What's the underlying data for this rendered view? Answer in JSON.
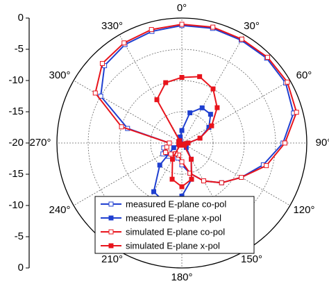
{
  "chart_data": {
    "type": "polar",
    "theta": [
      0,
      15,
      30,
      45,
      60,
      75,
      90,
      105,
      120,
      135,
      150,
      165,
      180,
      195,
      210,
      225,
      240,
      255,
      270,
      285,
      300,
      315,
      330,
      345
    ],
    "rlim": [
      -20,
      0
    ],
    "rticks": [
      -20,
      -15,
      -10,
      -5,
      0
    ],
    "thetaticks": [
      {
        "value": 0,
        "label": "0°"
      },
      {
        "value": 30,
        "label": "30°"
      },
      {
        "value": 60,
        "label": "60°"
      },
      {
        "value": 90,
        "label": "90°"
      },
      {
        "value": 120,
        "label": "120°"
      },
      {
        "value": 150,
        "label": "150°"
      },
      {
        "value": 180,
        "label": "180°"
      },
      {
        "value": 210,
        "label": "210°"
      },
      {
        "value": 240,
        "label": "240°"
      },
      {
        "value": 270,
        "label": "270°"
      },
      {
        "value": 300,
        "label": "300°"
      },
      {
        "value": 330,
        "label": "330°"
      }
    ],
    "grid": true,
    "legend": "bottom",
    "series": [
      {
        "name": "measured E-plane co-pol",
        "color": "#1f3fd0",
        "marker": "open-square",
        "values": [
          -1.2,
          -1,
          -1,
          -0.8,
          -0.8,
          -1.5,
          -3.8,
          -6.5,
          -9,
          -11,
          -13,
          -15,
          -16.5,
          -17.5,
          -18,
          -17,
          -16.5,
          -17,
          -18,
          -11,
          -5,
          -2.5,
          -1.8,
          -1.5
        ]
      },
      {
        "name": "measured E-plane x-pol",
        "color": "#1f3fd0",
        "marker": "filled-square",
        "values": [
          -18,
          -15,
          -13.5,
          -13.5,
          -15,
          -17,
          -19,
          -19.5,
          -19.5,
          -19,
          -17,
          -14,
          -11.5,
          -10,
          -11,
          -15,
          -18.5,
          -19.5,
          -19.5,
          -19.5,
          -19.5,
          -19.5,
          -19.5,
          -19
        ]
      },
      {
        "name": "simulated E-plane co-pol",
        "color": "#e8141c",
        "marker": "open-square",
        "values": [
          -1,
          -0.8,
          -0.8,
          -0.6,
          -0.5,
          -1,
          -3.5,
          -6,
          -9,
          -11,
          -13,
          -15,
          -17,
          -18,
          -18,
          -17.5,
          -17,
          -17.5,
          -18,
          -10,
          -4,
          -2,
          -1.5,
          -1.2
        ]
      },
      {
        "name": "simulated E-plane x-pol",
        "color": "#e8141c",
        "marker": "filled-square",
        "values": [
          -9.5,
          -9,
          -10,
          -12,
          -14.5,
          -17,
          -19,
          -19.5,
          -19.5,
          -19.5,
          -17,
          -14,
          -13,
          -14,
          -17,
          -19.5,
          -19.5,
          -19.5,
          -19.5,
          -19.5,
          -19.5,
          -19.5,
          -12,
          -10
        ]
      }
    ]
  }
}
